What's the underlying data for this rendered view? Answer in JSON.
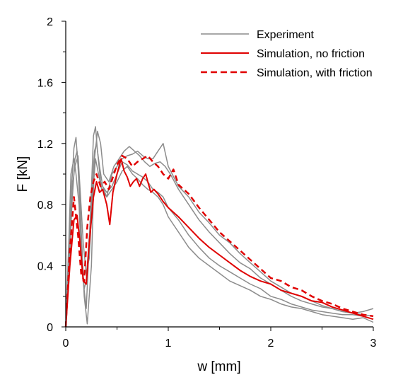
{
  "chart_data": {
    "type": "line",
    "xlabel": "w [mm]",
    "ylabel": "F [kN]",
    "xlim": [
      0,
      3
    ],
    "ylim": [
      0,
      2
    ],
    "xticks": [
      0,
      1,
      2,
      3
    ],
    "xtick_labels": [
      "0",
      "1",
      "2",
      "3"
    ],
    "yticks": [
      0,
      0.4,
      0.8,
      1.2,
      1.6,
      2
    ],
    "ytick_labels": [
      "0",
      "0.4",
      "0.8",
      "1.2",
      "1.6",
      "2"
    ],
    "grid": false,
    "legend_position": "top-right",
    "colors": {
      "experiment": "#8c8c8c",
      "simulation": "#e00000"
    },
    "series": [
      {
        "name": "Experiment",
        "style": "solid",
        "color": "#8c8c8c",
        "runs": [
          {
            "x": [
              0,
              0.03,
              0.06,
              0.08,
              0.1,
              0.12,
              0.15,
              0.17,
              0.2,
              0.23,
              0.27,
              0.29,
              0.31,
              0.34,
              0.37,
              0.4,
              0.45,
              0.5,
              0.55,
              0.6,
              0.65,
              0.7,
              0.75,
              0.8,
              0.85,
              0.9,
              0.95,
              1.0,
              1.1,
              1.2,
              1.3,
              1.4,
              1.5,
              1.6,
              1.7,
              1.8,
              1.9,
              2.0,
              2.1,
              2.2,
              2.3,
              2.4,
              2.5,
              2.6,
              2.7,
              2.8,
              2.9,
              3.0
            ],
            "y": [
              0,
              0.45,
              0.95,
              1.17,
              1.24,
              1.05,
              0.6,
              0.3,
              0.12,
              0.55,
              1.25,
              1.31,
              1.15,
              0.95,
              0.9,
              0.85,
              1.0,
              1.05,
              1.1,
              1.12,
              1.13,
              1.15,
              1.12,
              1.1,
              1.1,
              1.15,
              1.2,
              1.05,
              0.92,
              0.85,
              0.75,
              0.68,
              0.6,
              0.55,
              0.48,
              0.42,
              0.36,
              0.3,
              0.26,
              0.22,
              0.2,
              0.17,
              0.14,
              0.12,
              0.1,
              0.09,
              0.08,
              0.07
            ]
          },
          {
            "x": [
              0,
              0.03,
              0.06,
              0.09,
              0.11,
              0.13,
              0.16,
              0.18,
              0.21,
              0.25,
              0.28,
              0.31,
              0.34,
              0.37,
              0.42,
              0.47,
              0.52,
              0.57,
              0.62,
              0.67,
              0.72,
              0.77,
              0.82,
              0.87,
              0.92,
              0.97,
              1.02,
              1.1,
              1.2,
              1.3,
              1.4,
              1.5,
              1.6,
              1.7,
              1.8,
              1.9,
              2.0,
              2.1,
              2.2,
              2.3,
              2.4,
              2.5,
              2.6,
              2.7,
              2.8,
              2.9,
              3.0
            ],
            "y": [
              0,
              0.3,
              0.8,
              1.1,
              1.15,
              0.95,
              0.5,
              0.2,
              0.02,
              0.4,
              1.1,
              1.28,
              1.2,
              1.0,
              0.95,
              1.05,
              1.1,
              1.15,
              1.18,
              1.15,
              1.12,
              1.08,
              1.05,
              1.07,
              1.08,
              1.05,
              1.0,
              0.9,
              0.8,
              0.7,
              0.62,
              0.55,
              0.48,
              0.42,
              0.38,
              0.32,
              0.28,
              0.24,
              0.2,
              0.17,
              0.15,
              0.13,
              0.12,
              0.1,
              0.09,
              0.1,
              0.12
            ]
          },
          {
            "x": [
              0,
              0.03,
              0.05,
              0.08,
              0.1,
              0.13,
              0.15,
              0.18,
              0.2,
              0.24,
              0.28,
              0.3,
              0.33,
              0.36,
              0.4,
              0.45,
              0.5,
              0.55,
              0.6,
              0.65,
              0.7,
              0.75,
              0.8,
              0.85,
              0.9,
              0.95,
              1.0,
              1.1,
              1.2,
              1.3,
              1.4,
              1.5,
              1.6,
              1.7,
              1.8,
              1.9,
              2.0,
              2.1,
              2.2,
              2.3,
              2.4,
              2.5,
              2.6,
              2.7,
              2.8,
              2.9,
              3.0
            ],
            "y": [
              0,
              0.55,
              1.0,
              1.1,
              1.0,
              0.8,
              0.45,
              0.25,
              0.3,
              0.7,
              1.15,
              1.2,
              1.05,
              0.92,
              0.88,
              0.92,
              1.0,
              1.08,
              1.06,
              1.02,
              1.0,
              0.98,
              0.95,
              0.9,
              0.88,
              0.85,
              0.78,
              0.7,
              0.6,
              0.52,
              0.45,
              0.4,
              0.36,
              0.32,
              0.28,
              0.25,
              0.2,
              0.18,
              0.15,
              0.13,
              0.11,
              0.1,
              0.09,
              0.08,
              0.08,
              0.07,
              0.05
            ]
          },
          {
            "x": [
              0,
              0.03,
              0.06,
              0.09,
              0.12,
              0.14,
              0.17,
              0.2,
              0.23,
              0.26,
              0.29,
              0.32,
              0.35,
              0.4,
              0.45,
              0.5,
              0.55,
              0.6,
              0.65,
              0.7,
              0.75,
              0.8,
              0.85,
              0.9,
              0.95,
              1.0,
              1.1,
              1.2,
              1.3,
              1.4,
              1.5,
              1.6,
              1.7,
              1.8,
              1.9,
              2.0,
              2.1,
              2.2,
              2.3,
              2.4,
              2.5,
              2.6,
              2.7,
              2.8,
              2.9,
              3.0
            ],
            "y": [
              0,
              0.4,
              0.9,
              1.05,
              1.12,
              0.9,
              0.55,
              0.35,
              0.45,
              0.85,
              1.1,
              1.0,
              0.9,
              0.85,
              0.9,
              0.95,
              1.02,
              1.05,
              1.0,
              0.97,
              0.93,
              0.9,
              0.88,
              0.85,
              0.8,
              0.72,
              0.62,
              0.52,
              0.45,
              0.4,
              0.35,
              0.3,
              0.27,
              0.24,
              0.2,
              0.18,
              0.15,
              0.13,
              0.12,
              0.1,
              0.08,
              0.07,
              0.06,
              0.05,
              0.06,
              0.03
            ]
          }
        ]
      },
      {
        "name": "Simulation, no friction",
        "style": "solid",
        "color": "#e00000",
        "x": [
          0,
          0.04,
          0.08,
          0.11,
          0.14,
          0.17,
          0.2,
          0.23,
          0.27,
          0.3,
          0.33,
          0.36,
          0.4,
          0.43,
          0.46,
          0.5,
          0.54,
          0.57,
          0.6,
          0.63,
          0.66,
          0.69,
          0.72,
          0.75,
          0.78,
          0.8,
          0.83,
          0.86,
          0.9,
          0.95,
          1.0,
          1.1,
          1.2,
          1.3,
          1.4,
          1.5,
          1.6,
          1.7,
          1.8,
          1.9,
          2.0,
          2.1,
          2.2,
          2.3,
          2.4,
          2.5,
          2.6,
          2.7,
          2.8,
          2.9,
          3.0
        ],
        "y": [
          0,
          0.4,
          0.7,
          0.73,
          0.55,
          0.3,
          0.28,
          0.55,
          0.85,
          0.95,
          0.88,
          0.9,
          0.8,
          0.67,
          0.88,
          1.0,
          1.1,
          1.02,
          0.98,
          0.92,
          0.95,
          0.97,
          0.92,
          0.97,
          1.0,
          0.95,
          0.88,
          0.9,
          0.87,
          0.82,
          0.78,
          0.72,
          0.65,
          0.58,
          0.52,
          0.47,
          0.42,
          0.37,
          0.33,
          0.3,
          0.28,
          0.24,
          0.22,
          0.2,
          0.17,
          0.16,
          0.13,
          0.11,
          0.09,
          0.07,
          0.05
        ]
      },
      {
        "name": "Simulation, with friction",
        "style": "dashed",
        "color": "#e00000",
        "x": [
          0,
          0.04,
          0.08,
          0.12,
          0.15,
          0.18,
          0.21,
          0.24,
          0.27,
          0.3,
          0.34,
          0.38,
          0.42,
          0.46,
          0.5,
          0.55,
          0.6,
          0.65,
          0.7,
          0.75,
          0.8,
          0.85,
          0.9,
          0.95,
          1.0,
          1.05,
          1.1,
          1.2,
          1.3,
          1.4,
          1.5,
          1.6,
          1.7,
          1.8,
          1.9,
          2.0,
          2.1,
          2.2,
          2.3,
          2.4,
          2.5,
          2.6,
          2.7,
          2.8,
          2.9,
          3.0
        ],
        "y": [
          0,
          0.5,
          0.85,
          0.6,
          0.35,
          0.3,
          0.65,
          0.85,
          0.95,
          1.0,
          0.92,
          0.95,
          0.9,
          0.98,
          1.06,
          1.12,
          1.1,
          1.05,
          1.08,
          1.1,
          1.12,
          1.08,
          1.05,
          1.0,
          0.97,
          1.03,
          0.93,
          0.87,
          0.78,
          0.7,
          0.62,
          0.56,
          0.5,
          0.44,
          0.38,
          0.32,
          0.3,
          0.26,
          0.24,
          0.2,
          0.17,
          0.15,
          0.12,
          0.1,
          0.08,
          0.07
        ]
      }
    ]
  }
}
